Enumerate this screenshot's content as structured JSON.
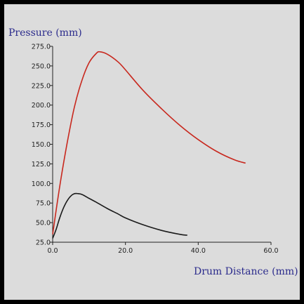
{
  "chart_data": {
    "type": "line",
    "ylabel": "Pressure (mm)",
    "xlabel": "Drum Distance (mm)",
    "xlim": [
      0,
      60
    ],
    "ylim": [
      25,
      275
    ],
    "x_ticks": [
      "0.0",
      "20.0",
      "40.0",
      "60.0"
    ],
    "y_ticks": [
      "25.0",
      "50.0",
      "75.0",
      "100.0",
      "125.0",
      "150.0",
      "175.0",
      "200.0",
      "225.0",
      "250.0",
      "275.0"
    ],
    "grid": false,
    "legend": "none",
    "series": [
      {
        "color": "#c8281e",
        "x": [
          0,
          2,
          4,
          6,
          8,
          10,
          12,
          13,
          15,
          18,
          20,
          25,
          30,
          35,
          40,
          45,
          50,
          53
        ],
        "y": [
          35,
          98,
          152,
          198,
          231,
          254,
          266,
          268,
          265,
          255,
          245,
          218,
          195,
          174,
          156,
          141,
          130,
          126
        ]
      },
      {
        "color": "#1a1a1a",
        "x": [
          0,
          1,
          2,
          3,
          4,
          5,
          6,
          7,
          8,
          10,
          12,
          15,
          18,
          20,
          25,
          30,
          35,
          37
        ],
        "y": [
          30,
          42,
          57,
          69,
          78,
          84,
          87,
          87,
          86,
          81,
          76,
          68,
          61,
          56,
          47,
          40,
          35,
          34
        ]
      }
    ]
  }
}
